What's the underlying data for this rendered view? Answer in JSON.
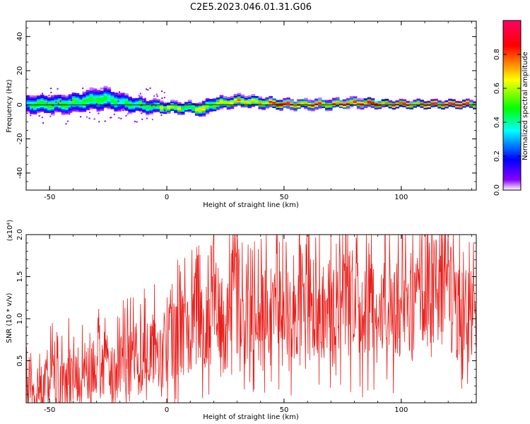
{
  "title": "C2E5.2023.046.01.31.G06",
  "chart_data": [
    {
      "type": "heatmap",
      "name": "spectrogram",
      "xlabel": "Height of straight line (km)",
      "ylabel": "Frequency (Hz)",
      "xlim": [
        -60,
        132
      ],
      "ylim": [
        -50,
        49
      ],
      "xticks": [
        -50,
        0,
        50,
        100
      ],
      "yticks": [
        -40,
        -20,
        0,
        20,
        40
      ],
      "xtick_labels": [
        "-50",
        "0",
        "50",
        "100"
      ],
      "ytick_labels": [
        "-40",
        "-20",
        "0",
        "20",
        "40"
      ],
      "colorbar": {
        "label": "Normalized spectral amplitude",
        "range": [
          0,
          1
        ],
        "ticks": [
          0.0,
          0.2,
          0.4,
          0.6,
          0.8
        ],
        "tick_labels": [
          "0.0",
          "0.2",
          "0.4",
          "0.6",
          "0.8"
        ],
        "colormap": [
          "#ffffff",
          "#7b00ff",
          "#0000ff",
          "#00ffff",
          "#00ff00",
          "#ffff00",
          "#ff0000",
          "#ff0066"
        ]
      },
      "ridge": {
        "x": [
          -60,
          -45,
          -30,
          -25,
          -20,
          -10,
          0,
          10,
          15,
          18,
          25,
          30,
          40,
          50,
          60,
          70,
          80,
          95,
          100,
          110,
          120,
          132
        ],
        "center_hz": [
          0,
          0,
          3,
          3,
          1,
          -1,
          -2,
          -2,
          -3,
          0,
          1,
          2,
          1,
          0,
          0,
          0,
          1,
          0,
          0,
          0,
          0,
          0
        ],
        "spread_hz": [
          5,
          5,
          6,
          6,
          5,
          4,
          3,
          3,
          4,
          4,
          3,
          3,
          3,
          2.5,
          2.5,
          2.5,
          2.5,
          2,
          2,
          2,
          2,
          2
        ],
        "peak_amplitude": [
          0.45,
          0.5,
          0.5,
          0.45,
          0.45,
          0.55,
          0.65,
          0.65,
          0.65,
          0.6,
          0.75,
          0.85,
          0.8,
          0.9,
          0.9,
          0.9,
          0.9,
          0.95,
          0.95,
          0.95,
          0.95,
          0.95
        ]
      }
    },
    {
      "type": "line",
      "name": "snr",
      "xlabel": "Height of straight line (km)",
      "ylabel": "SNR (10 * v/v)",
      "y_multiplier_label": "(x10⁴)",
      "xlim": [
        -60,
        132
      ],
      "ylim": [
        0,
        2.0
      ],
      "xticks": [
        -50,
        0,
        50,
        100
      ],
      "yticks": [
        0.5,
        1.0,
        1.5,
        2.0
      ],
      "xtick_labels": [
        "-50",
        "0",
        "50",
        "100"
      ],
      "ytick_labels": [
        "0.5",
        "1.0",
        "1.5",
        "2.0"
      ],
      "series": [
        {
          "name": "SNR",
          "color": "#e8201c",
          "x": [
            -60,
            -57,
            -54,
            -51,
            -48,
            -45,
            -42,
            -39,
            -36,
            -33,
            -30,
            -27,
            -24,
            -21,
            -18,
            -15,
            -12,
            -9,
            -6,
            -3,
            0,
            3,
            6,
            9,
            12,
            15,
            18,
            21,
            24,
            27,
            30,
            33,
            36,
            39,
            42,
            45,
            48,
            51,
            54,
            57,
            60,
            63,
            66,
            69,
            72,
            75,
            78,
            81,
            84,
            87,
            90,
            93,
            96,
            99,
            102,
            105,
            108,
            111,
            114,
            117,
            120,
            123,
            126,
            129,
            132
          ],
          "values": [
            0.1,
            0.2,
            0.15,
            0.25,
            0.3,
            0.2,
            0.35,
            0.25,
            0.4,
            0.3,
            0.45,
            0.35,
            0.3,
            0.4,
            0.5,
            0.55,
            0.45,
            0.6,
            0.7,
            0.6,
            0.75,
            0.7,
            0.9,
            0.8,
            1.0,
            0.85,
            0.95,
            1.2,
            0.9,
            1.1,
            1.3,
            0.85,
            1.0,
            0.95,
            1.1,
            1.05,
            1.2,
            1.0,
            0.9,
            1.3,
            1.1,
            1.2,
            1.05,
            1.15,
            1.0,
            1.25,
            1.2,
            1.1,
            1.05,
            1.15,
            1.0,
            1.2,
            1.1,
            1.15,
            1.1,
            1.05,
            1.15,
            1.2,
            1.25,
            1.35,
            1.3,
            1.1,
            0.95,
            1.0,
            0.9
          ],
          "peaks": [
            {
              "x": 20,
              "y": 1.98
            },
            {
              "x": 30,
              "y": 2.0
            },
            {
              "x": 34,
              "y": 1.65
            },
            {
              "x": 57,
              "y": 1.88
            },
            {
              "x": 79,
              "y": 1.58
            },
            {
              "x": 118,
              "y": 1.52
            },
            {
              "x": 126,
              "y": 1.55
            },
            {
              "x": -13,
              "y": 0.95
            },
            {
              "x": -6,
              "y": 1.05
            }
          ]
        }
      ]
    }
  ]
}
